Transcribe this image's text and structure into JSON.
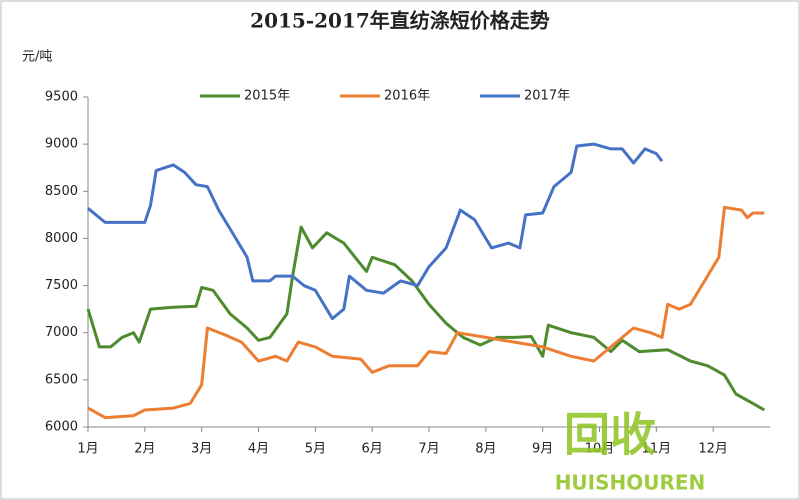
{
  "chart_data": {
    "type": "line",
    "title": "2015-2017年直纺涤短价格走势",
    "y_label": "元/吨",
    "legend_position": "top",
    "xlim": [
      1,
      13
    ],
    "xticks": [
      {
        "value": 1,
        "label": "1月"
      },
      {
        "value": 2,
        "label": "2月"
      },
      {
        "value": 3,
        "label": "3月"
      },
      {
        "value": 4,
        "label": "4月"
      },
      {
        "value": 5,
        "label": "5月"
      },
      {
        "value": 6,
        "label": "6月"
      },
      {
        "value": 7,
        "label": "7月"
      },
      {
        "value": 8,
        "label": "8月"
      },
      {
        "value": 9,
        "label": "9月"
      },
      {
        "value": 10,
        "label": "10月"
      },
      {
        "value": 11,
        "label": "11月"
      },
      {
        "value": 12,
        "label": "12月"
      }
    ],
    "ylim": [
      6000,
      9500
    ],
    "yticks": [
      6000,
      6500,
      7000,
      7500,
      8000,
      8500,
      9000,
      9500
    ],
    "watermark": [
      "回收",
      "HUISHOUREN"
    ],
    "series": [
      {
        "name": "2015年",
        "color": "#4e8a2e",
        "x": [
          1.0,
          1.2,
          1.4,
          1.6,
          1.8,
          1.9,
          2.1,
          2.5,
          2.9,
          3.0,
          3.2,
          3.5,
          3.8,
          4.0,
          4.2,
          4.5,
          4.6,
          4.75,
          4.95,
          5.2,
          5.5,
          5.7,
          5.9,
          6.0,
          6.4,
          6.7,
          7.0,
          7.3,
          7.6,
          7.9,
          8.2,
          8.5,
          8.8,
          9.0,
          9.1,
          9.5,
          9.9,
          10.2,
          10.4,
          10.7,
          11.2,
          11.6,
          11.9,
          12.2,
          12.4,
          12.7,
          12.9
        ],
        "values": [
          7250,
          6850,
          6850,
          6950,
          7000,
          6900,
          7250,
          7270,
          7280,
          7480,
          7450,
          7200,
          7050,
          6920,
          6950,
          7200,
          7600,
          8120,
          7900,
          8060,
          7950,
          7800,
          7650,
          7800,
          7720,
          7550,
          7300,
          7100,
          6950,
          6870,
          6950,
          6950,
          6960,
          6750,
          7080,
          7000,
          6950,
          6800,
          6920,
          6800,
          6820,
          6700,
          6650,
          6550,
          6350,
          6250,
          6180
        ]
      },
      {
        "name": "2016年",
        "color": "#ed7d31",
        "x": [
          1.0,
          1.3,
          1.8,
          2.0,
          2.5,
          2.8,
          3.0,
          3.1,
          3.4,
          3.7,
          4.0,
          4.3,
          4.5,
          4.7,
          5.0,
          5.3,
          5.8,
          6.0,
          6.3,
          6.8,
          7.0,
          7.3,
          7.5,
          8.0,
          8.5,
          9.0,
          9.5,
          9.9,
          10.3,
          10.6,
          10.9,
          11.1,
          11.2,
          11.4,
          11.6,
          11.9,
          12.1,
          12.2,
          12.5,
          12.6,
          12.7,
          12.9
        ],
        "values": [
          6200,
          6100,
          6120,
          6180,
          6200,
          6250,
          6450,
          7050,
          6980,
          6900,
          6700,
          6750,
          6700,
          6900,
          6850,
          6750,
          6720,
          6580,
          6650,
          6650,
          6800,
          6780,
          7000,
          6950,
          6900,
          6850,
          6750,
          6700,
          6900,
          7050,
          7000,
          6950,
          7300,
          7250,
          7300,
          7600,
          7800,
          8330,
          8300,
          8220,
          8270,
          8270
        ]
      },
      {
        "name": "2017年",
        "color": "#4472c4",
        "x": [
          1.0,
          1.3,
          1.6,
          2.0,
          2.1,
          2.2,
          2.5,
          2.7,
          2.9,
          3.1,
          3.3,
          3.6,
          3.8,
          3.9,
          4.2,
          4.3,
          4.6,
          4.8,
          5.0,
          5.3,
          5.5,
          5.6,
          5.9,
          6.2,
          6.5,
          6.8,
          7.0,
          7.3,
          7.55,
          7.8,
          8.1,
          8.4,
          8.6,
          8.7,
          9.0,
          9.2,
          9.4,
          9.5,
          9.6,
          9.9,
          10.2,
          10.4,
          10.6,
          10.8,
          11.0,
          11.1
        ],
        "values": [
          8320,
          8170,
          8170,
          8170,
          8350,
          8720,
          8780,
          8700,
          8570,
          8550,
          8300,
          8000,
          7800,
          7550,
          7550,
          7600,
          7600,
          7500,
          7450,
          7150,
          7250,
          7600,
          7450,
          7420,
          7550,
          7500,
          7700,
          7900,
          8300,
          8200,
          7900,
          7950,
          7900,
          8250,
          8270,
          8550,
          8650,
          8700,
          8980,
          9000,
          8950,
          8950,
          8800,
          8950,
          8900,
          8820
        ]
      }
    ]
  }
}
